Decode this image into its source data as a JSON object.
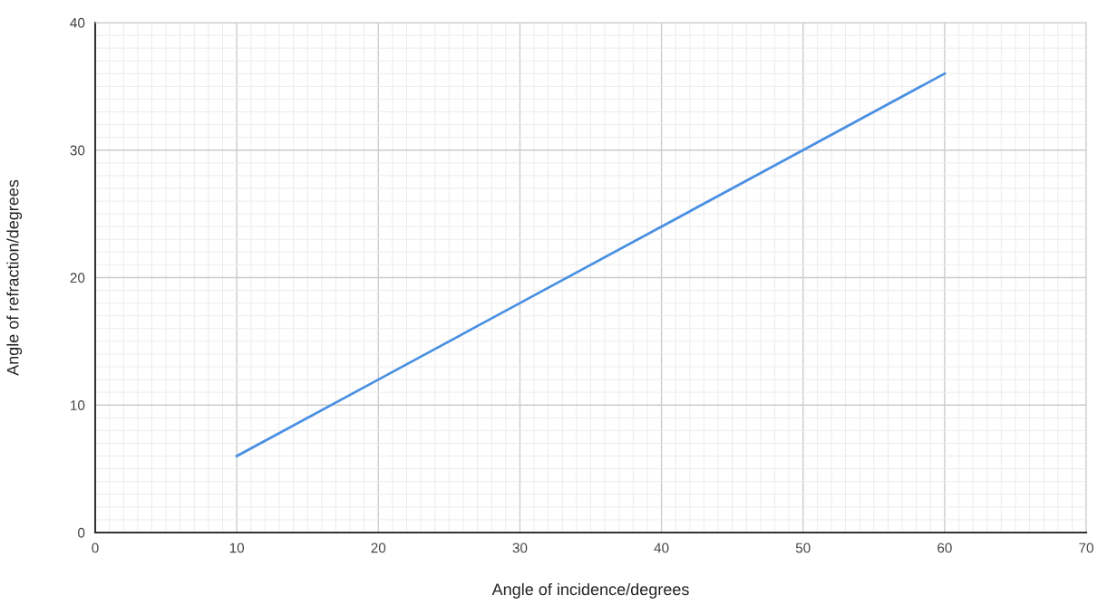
{
  "chart_data": {
    "type": "line",
    "xlabel": "Angle of incidence/degrees",
    "ylabel": "Angle of refraction/degrees",
    "x": [
      10,
      20,
      30,
      40,
      50,
      60
    ],
    "series": [
      {
        "color": "#4a90e2",
        "values": [
          6,
          12,
          18,
          24,
          30,
          36
        ]
      }
    ],
    "xlim": [
      0,
      70
    ],
    "xticks": [
      0,
      10,
      20,
      30,
      40,
      50,
      60,
      70
    ],
    "ylim": [
      0,
      40
    ],
    "yticks": [
      0,
      10,
      20,
      30,
      40
    ],
    "grid": true,
    "marker": "none",
    "line_style": "solid"
  }
}
